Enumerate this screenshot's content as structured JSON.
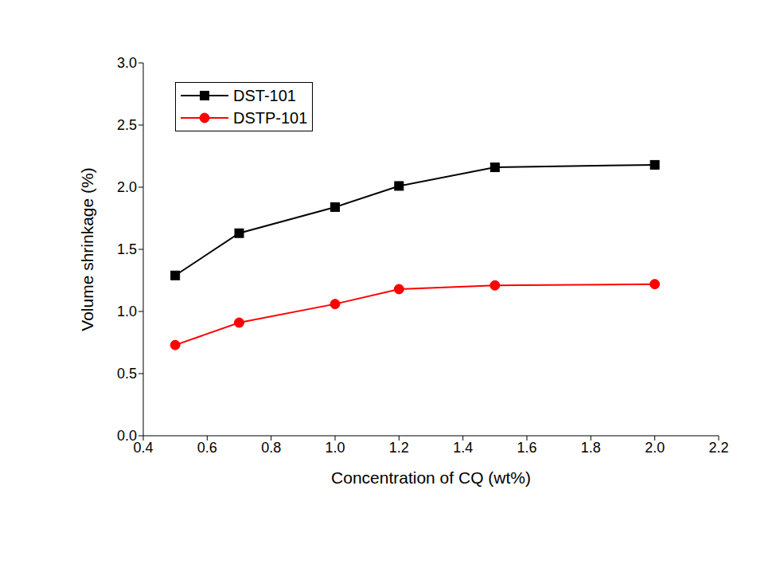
{
  "chart_data": {
    "type": "line",
    "x_label": "Concentration of CQ (wt%)",
    "y_label": "Volume shrinkage (%)",
    "x": [
      0.5,
      0.7,
      1.0,
      1.2,
      1.5,
      2.0
    ],
    "series": [
      {
        "name": "DST-101",
        "color": "#000000",
        "marker": "square",
        "values": [
          1.29,
          1.63,
          1.84,
          2.01,
          2.16,
          2.18
        ]
      },
      {
        "name": "DSTP-101",
        "color": "#ff0000",
        "marker": "circle",
        "values": [
          0.73,
          0.91,
          1.06,
          1.18,
          1.21,
          1.22
        ]
      }
    ],
    "xlim": [
      0.4,
      2.2
    ],
    "xticks": [
      0.4,
      0.6,
      0.8,
      {
        "value": 1,
        "label": "1.0"
      },
      1.2,
      1.4,
      1.6,
      1.8,
      {
        "value": 2,
        "label": "2.0"
      },
      2.2
    ],
    "ylim": [
      0,
      3
    ],
    "yticks": [
      {
        "value": 0,
        "label": "0.0"
      },
      0.5,
      {
        "value": 1,
        "label": "1.0"
      },
      1.5,
      {
        "value": 2,
        "label": "2.0"
      },
      2.5,
      {
        "value": 3,
        "label": "3.0"
      }
    ],
    "grid": false,
    "legend": "upper left"
  }
}
